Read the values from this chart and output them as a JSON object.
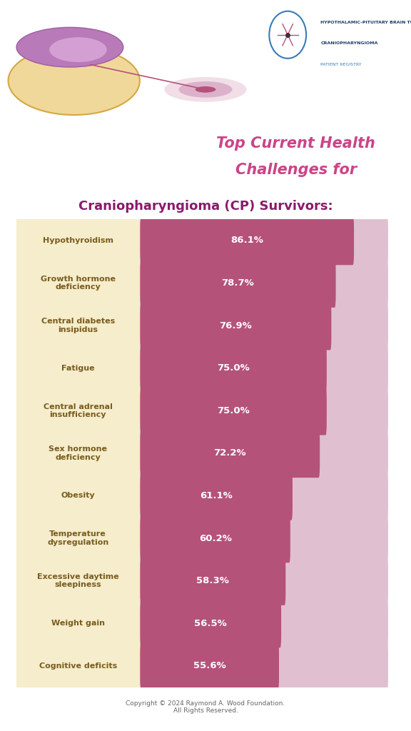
{
  "title_line1": "Top Current Health",
  "title_line2": "Challenges for",
  "title_line3": "Craniopharyngioma (CP) Survivors:",
  "categories": [
    "Hypothyroidism",
    "Growth hormone\ndeficiency",
    "Central diabetes\ninsipidus",
    "Fatigue",
    "Central adrenal\ninsufficiency",
    "Sex hormone\ndeficiency",
    "Obesity",
    "Temperature\ndysregulation",
    "Excessive daytime\nsleepiness",
    "Weight gain",
    "Cognitive deficits"
  ],
  "values": [
    86.1,
    78.7,
    76.9,
    75.0,
    75.0,
    72.2,
    61.1,
    60.2,
    58.3,
    56.5,
    55.6
  ],
  "max_value": 100,
  "bar_color": "#b5527a",
  "bar_bg_color": "#e0c0d0",
  "label_bg_color": "#f5edcc",
  "label_text_color": "#7a5c1e",
  "title_color_pink": "#cc4488",
  "title_color_purple": "#8b1a6b",
  "value_text_color": "#ffffff",
  "bg_color": "#ffffff",
  "header_bg_color": "#e8a825",
  "footer_text": "Copyright © 2024 Raymond A. Wood Foundation.\nAll Rights Reserved.",
  "footer_color": "#666666"
}
